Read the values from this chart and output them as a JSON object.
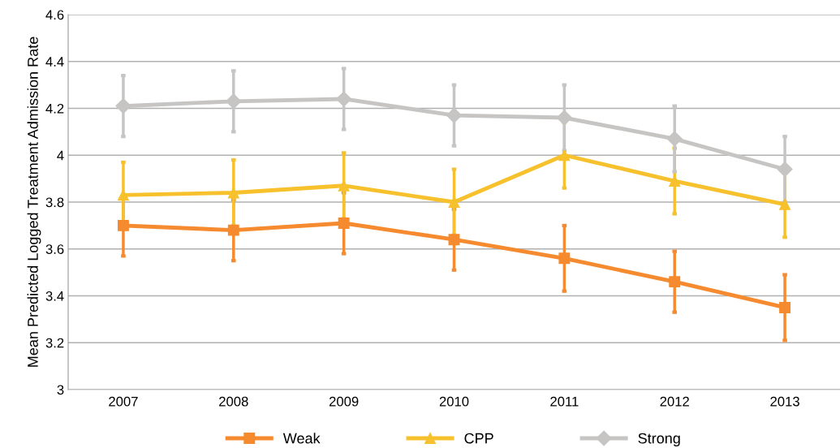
{
  "chart_data": {
    "type": "line",
    "ylabel": "Mean Predicted Logged Treatment Admission Rate",
    "categories": [
      "2007",
      "2008",
      "2009",
      "2010",
      "2011",
      "2012",
      "2013"
    ],
    "series": [
      {
        "name": "Weak",
        "color": "#f58a2e",
        "marker": "square",
        "values": [
          3.7,
          3.68,
          3.71,
          3.64,
          3.56,
          3.46,
          3.35
        ],
        "errors": [
          0.13,
          0.13,
          0.13,
          0.13,
          0.14,
          0.13,
          0.14
        ]
      },
      {
        "name": "CPP",
        "color": "#f6c12c",
        "marker": "triangle",
        "values": [
          3.83,
          3.84,
          3.87,
          3.8,
          4.0,
          3.89,
          3.79
        ],
        "errors": [
          0.14,
          0.14,
          0.14,
          0.14,
          0.14,
          0.14,
          0.14
        ]
      },
      {
        "name": "Strong",
        "color": "#c6c5c3",
        "marker": "diamond",
        "values": [
          4.21,
          4.23,
          4.24,
          4.17,
          4.16,
          4.07,
          3.94
        ],
        "errors": [
          0.13,
          0.13,
          0.13,
          0.13,
          0.14,
          0.14,
          0.14
        ]
      }
    ],
    "ylim": [
      3,
      4.6
    ],
    "yticks": [
      3,
      3.2,
      3.4,
      3.6,
      3.8,
      4,
      4.2,
      4.4,
      4.6
    ],
    "grid": "y",
    "legend": "bottom"
  }
}
